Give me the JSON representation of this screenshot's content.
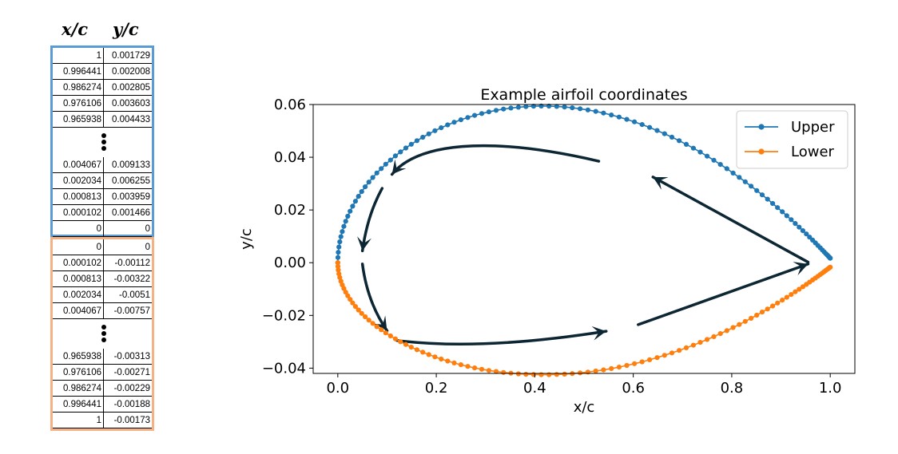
{
  "table": {
    "x_header": "x/c",
    "y_header": "y/c",
    "upper_color": "#5b9bd5",
    "lower_color": "#f4b183",
    "upper_top_rows": [
      [
        "1",
        "0.001729"
      ],
      [
        "0.996441",
        "0.002008"
      ],
      [
        "0.986274",
        "0.002805"
      ],
      [
        "0.976106",
        "0.003603"
      ],
      [
        "0.965938",
        "0.004433"
      ]
    ],
    "upper_bottom_rows": [
      [
        "0.004067",
        "0.009133"
      ],
      [
        "0.002034",
        "0.006255"
      ],
      [
        "0.000813",
        "0.003959"
      ],
      [
        "0.000102",
        "0.001466"
      ],
      [
        "0",
        "0"
      ]
    ],
    "lower_top_rows": [
      [
        "0",
        "0"
      ],
      [
        "0.000102",
        "-0.00112"
      ],
      [
        "0.000813",
        "-0.00322"
      ],
      [
        "0.002034",
        "-0.0051"
      ],
      [
        "0.004067",
        "-0.00757"
      ]
    ],
    "lower_bottom_rows": [
      [
        "0.965938",
        "-0.00313"
      ],
      [
        "0.976106",
        "-0.00271"
      ],
      [
        "0.986274",
        "-0.00229"
      ],
      [
        "0.996441",
        "-0.00188"
      ],
      [
        "1",
        "-0.00173"
      ]
    ]
  },
  "chart_data": {
    "type": "line",
    "title": "Example airfoil coordinates",
    "xlabel": "x/c",
    "ylabel": "y/c",
    "xlim": [
      -0.05,
      1.05
    ],
    "ylim": [
      -0.042,
      0.06
    ],
    "xticks": [
      "0.0",
      "0.2",
      "0.4",
      "0.6",
      "0.8",
      "1.0"
    ],
    "xtick_values": [
      0.0,
      0.2,
      0.4,
      0.6,
      0.8,
      1.0
    ],
    "yticks": [
      "−0.04",
      "−0.02",
      "0.00",
      "0.02",
      "0.04",
      "0.06"
    ],
    "ytick_values": [
      -0.04,
      -0.02,
      0.0,
      0.02,
      0.04,
      0.06
    ],
    "grid": false,
    "legend_position": "top-right",
    "series": [
      {
        "name": "Upper",
        "color": "#1f77b4",
        "shape": {
          "t_max": 0.12,
          "peak_x": 0.28,
          "peak_y": 0.0555,
          "te_y": 0.0017
        }
      },
      {
        "name": "Lower",
        "color": "#ff7f0e",
        "shape": {
          "t_max": 0.12,
          "trough_x": 0.28,
          "trough_y": -0.0395,
          "te_y": -0.0017
        }
      }
    ],
    "points_per_surface": 100,
    "arrow_color": "#0d2633"
  }
}
